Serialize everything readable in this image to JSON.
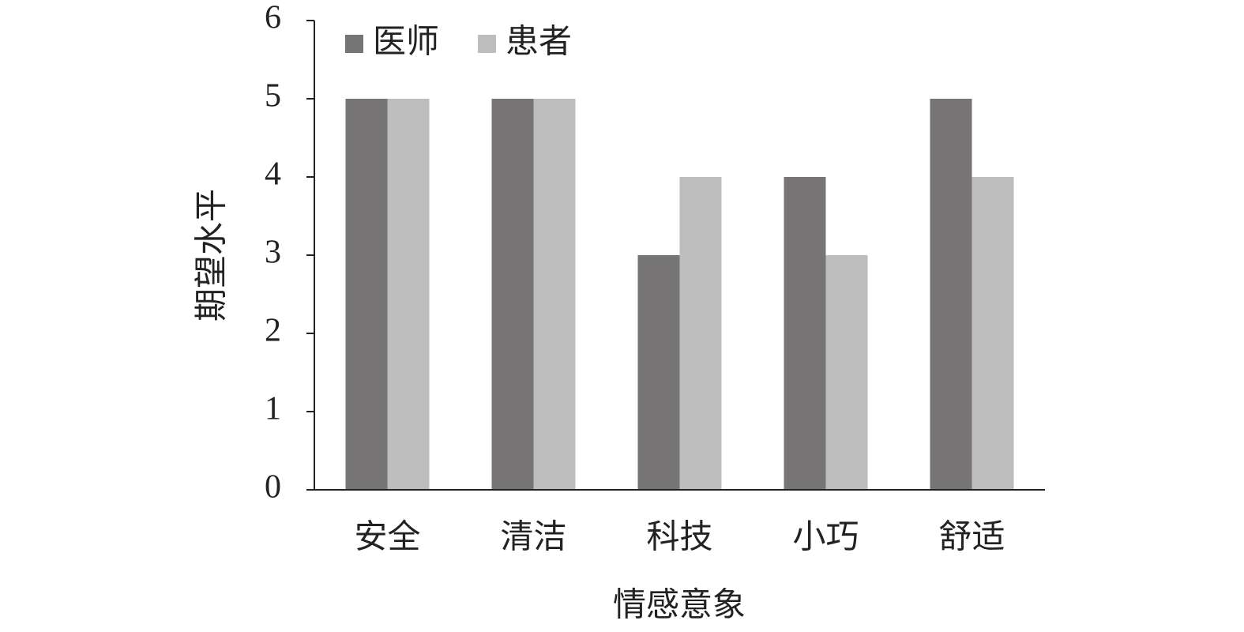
{
  "chart_data": {
    "type": "bar",
    "x_label": "情感意象",
    "y_label": "期望水平",
    "categories": [
      "安全",
      "清洁",
      "科技",
      "小巧",
      "舒适"
    ],
    "series": [
      {
        "name": "医师",
        "color": "#767474",
        "values": [
          5,
          5,
          3,
          4,
          5
        ]
      },
      {
        "name": "患者",
        "color": "#bdbdbd",
        "values": [
          5,
          5,
          4,
          3,
          4
        ]
      }
    ],
    "ylim": [
      0,
      6
    ],
    "yticks": [
      0,
      1,
      2,
      3,
      4,
      5,
      6
    ],
    "legend": "top-left"
  }
}
